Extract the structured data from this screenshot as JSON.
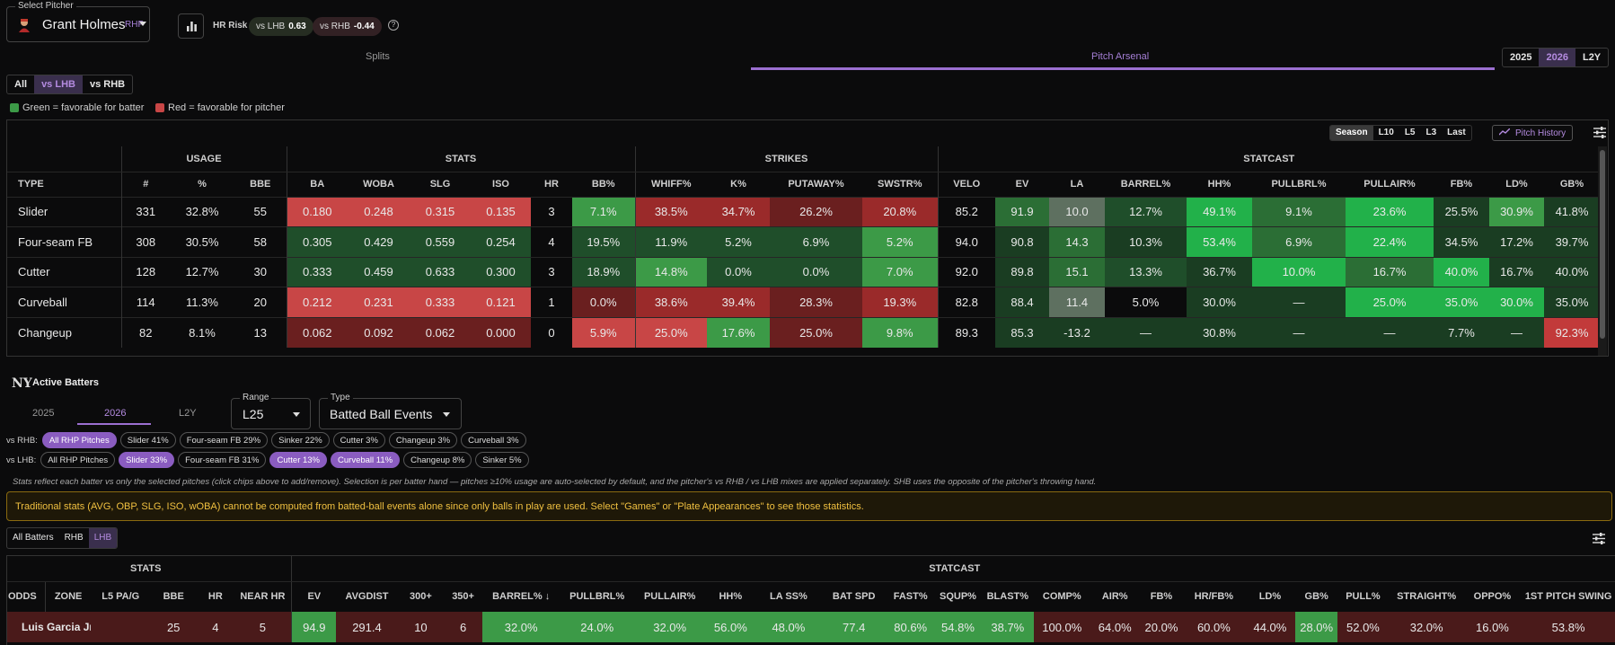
{
  "header": {
    "select_label": "Select Pitcher",
    "pitcher_name": "Grant Holmes",
    "pitcher_hand": "RHP",
    "hr_risk_label": "HR Risk",
    "vs_lhb_label": "vs LHB",
    "vs_lhb_value": "0.63",
    "vs_rhb_label": "vs RHB",
    "vs_rhb_value": "-0.44",
    "help": "?"
  },
  "tabs": {
    "splits": "Splits",
    "arsenal": "Pitch Arsenal"
  },
  "years": [
    "2025",
    "2026",
    "L2Y"
  ],
  "split_filter": [
    "All",
    "vs LHB",
    "vs RHB"
  ],
  "legend": {
    "green": "Green = favorable for batter",
    "red": "Red = favorable for pitcher"
  },
  "period": [
    "Season",
    "L10",
    "L5",
    "L3",
    "Last"
  ],
  "pitch_history": "Pitch History",
  "arsenal": {
    "groups": [
      "USAGE",
      "STATS",
      "STRIKES",
      "STATCAST"
    ],
    "columns": [
      "TYPE",
      "#",
      "%",
      "BBE",
      "BA",
      "WOBA",
      "SLG",
      "ISO",
      "HR",
      "BB%",
      "WHIFF%",
      "K%",
      "PUTAWAY%",
      "SWSTR%",
      "VELO",
      "EV",
      "LA",
      "BARREL%",
      "HH%",
      "PULLBRL%",
      "PULLAIR%",
      "FB%",
      "LD%",
      "GB%"
    ],
    "rows": [
      [
        "Slider",
        "331",
        "32.8%",
        "55",
        "0.180",
        "0.248",
        "0.315",
        "0.135",
        "3",
        "7.1%",
        "38.5%",
        "34.7%",
        "26.2%",
        "20.8%",
        "85.2",
        "91.9",
        "10.0",
        "12.7%",
        "49.1%",
        "9.1%",
        "23.6%",
        "25.5%",
        "30.9%",
        "41.8%"
      ],
      [
        "Four-seam FB",
        "308",
        "30.5%",
        "58",
        "0.305",
        "0.429",
        "0.559",
        "0.254",
        "4",
        "19.5%",
        "11.9%",
        "5.2%",
        "6.9%",
        "5.2%",
        "94.0",
        "90.8",
        "14.3",
        "10.3%",
        "53.4%",
        "6.9%",
        "22.4%",
        "34.5%",
        "17.2%",
        "39.7%"
      ],
      [
        "Cutter",
        "128",
        "12.7%",
        "30",
        "0.333",
        "0.459",
        "0.633",
        "0.300",
        "3",
        "18.9%",
        "14.8%",
        "0.0%",
        "0.0%",
        "7.0%",
        "92.0",
        "89.8",
        "15.1",
        "13.3%",
        "36.7%",
        "10.0%",
        "16.7%",
        "40.0%",
        "16.7%",
        "40.0%"
      ],
      [
        "Curveball",
        "114",
        "11.3%",
        "20",
        "0.212",
        "0.231",
        "0.333",
        "0.121",
        "1",
        "0.0%",
        "38.6%",
        "39.4%",
        "28.3%",
        "19.3%",
        "82.8",
        "88.4",
        "11.4",
        "5.0%",
        "30.0%",
        "—",
        "25.0%",
        "35.0%",
        "30.0%",
        "35.0%"
      ],
      [
        "Changeup",
        "82",
        "8.1%",
        "13",
        "0.062",
        "0.092",
        "0.062",
        "0.000",
        "0",
        "5.9%",
        "25.0%",
        "17.6%",
        "25.0%",
        "9.8%",
        "89.3",
        "85.3",
        "-13.2",
        "—",
        "30.8%",
        "—",
        "—",
        "7.7%",
        "—",
        "92.3%"
      ]
    ]
  },
  "active_batters": {
    "title": "Active Batters",
    "years": [
      "2025",
      "2026",
      "L2Y"
    ],
    "range_label": "Range",
    "range_value": "L25",
    "type_label": "Type",
    "type_value": "Batted Ball Events",
    "vs_rhb_label": "vs RHB:",
    "vs_rhb_chips": [
      "All RHP Pitches",
      "Slider 41%",
      "Four-seam FB 29%",
      "Sinker 22%",
      "Cutter 3%",
      "Changeup 3%",
      "Curveball 3%"
    ],
    "vs_lhb_label": "vs LHB:",
    "vs_lhb_chips": [
      "All RHP Pitches",
      "Slider 33%",
      "Four-seam FB 31%",
      "Cutter 13%",
      "Curveball 11%",
      "Changeup 8%",
      "Sinker 5%"
    ],
    "note": "Stats reflect each batter vs only the selected pitches (click chips above to add/remove). Selection is per batter hand — pitches ≥10% usage are auto-selected by default, and the pitcher's vs RHB / vs LHB mixes are applied separately. SHB uses the opposite of the pitcher's throwing hand.",
    "warning": "Traditional stats (AVG, OBP, SLG, ISO, wOBA) cannot be computed from batted-ball events alone since only balls in play are used. Select \"Games\" or \"Plate Appearances\" to see those statistics.",
    "hand_filter": [
      "All Batters",
      "RHB",
      "LHB"
    ]
  },
  "batters_table": {
    "groups": [
      "STATS",
      "STATCAST"
    ],
    "columns": [
      "ODDS",
      "ZONE",
      "L5 PA/G",
      "BBE",
      "HR",
      "NEAR HR",
      "EV",
      "AVGDIST",
      "300+",
      "350+",
      "BARREL% ↓",
      "PULLBRL%",
      "PULLAIR%",
      "HH%",
      "LA SS%",
      "BAT SPD",
      "FAST%",
      "SQUP%",
      "BLAST%",
      "COMP%",
      "AIR%",
      "FB%",
      "HR/FB%",
      "LD%",
      "GB%",
      "PULL%",
      "STRAIGHT%",
      "OPPO%",
      "1ST PITCH SWING"
    ],
    "row": {
      "name": "Luis Garcia Jr.",
      "hand": "LHB",
      "values": [
        "25",
        "4",
        "5",
        "94.9",
        "291.4",
        "10",
        "6",
        "32.0%",
        "24.0%",
        "32.0%",
        "56.0%",
        "48.0%",
        "77.4",
        "80.6%",
        "54.8%",
        "38.7%",
        "100.0%",
        "64.0%",
        "20.0%",
        "60.0%",
        "44.0%",
        "28.0%",
        "52.0%",
        "32.0%",
        "16.0%",
        "53.8%"
      ]
    }
  }
}
